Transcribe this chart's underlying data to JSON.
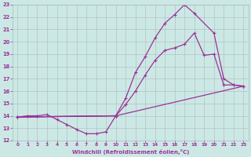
{
  "xlabel": "Windchill (Refroidissement éolien,°C)",
  "bg_color": "#cce8e4",
  "grid_color": "#aabbbb",
  "line_color": "#993399",
  "xlim": [
    -0.5,
    23.5
  ],
  "ylim": [
    12,
    23
  ],
  "xticks": [
    0,
    1,
    2,
    3,
    4,
    5,
    6,
    7,
    8,
    9,
    10,
    11,
    12,
    13,
    14,
    15,
    16,
    17,
    18,
    19,
    20,
    21,
    22,
    23
  ],
  "yticks": [
    12,
    13,
    14,
    15,
    16,
    17,
    18,
    19,
    20,
    21,
    22,
    23
  ],
  "line1_x": [
    0,
    1,
    2,
    3,
    4,
    5,
    6,
    7,
    8,
    9,
    10
  ],
  "line1_y": [
    13.9,
    14.0,
    14.0,
    14.1,
    13.7,
    13.3,
    12.9,
    12.55,
    12.55,
    12.7,
    14.0
  ],
  "line2_x": [
    0,
    10,
    23
  ],
  "line2_y": [
    13.9,
    14.0,
    16.4
  ],
  "line3_x": [
    0,
    10,
    11,
    12,
    13,
    14,
    15,
    16,
    17,
    18,
    20,
    21,
    22,
    23
  ],
  "line3_y": [
    13.9,
    14.0,
    15.4,
    17.5,
    18.8,
    20.3,
    21.5,
    22.2,
    23.0,
    22.3,
    20.7,
    17.0,
    16.5,
    16.4
  ],
  "line4_x": [
    0,
    10,
    11,
    12,
    13,
    14,
    15,
    16,
    17,
    18,
    19,
    20,
    21,
    22,
    23
  ],
  "line4_y": [
    13.9,
    14.0,
    14.9,
    16.0,
    17.3,
    18.5,
    19.3,
    19.5,
    19.8,
    20.7,
    18.9,
    19.0,
    16.5,
    16.5,
    16.4
  ]
}
